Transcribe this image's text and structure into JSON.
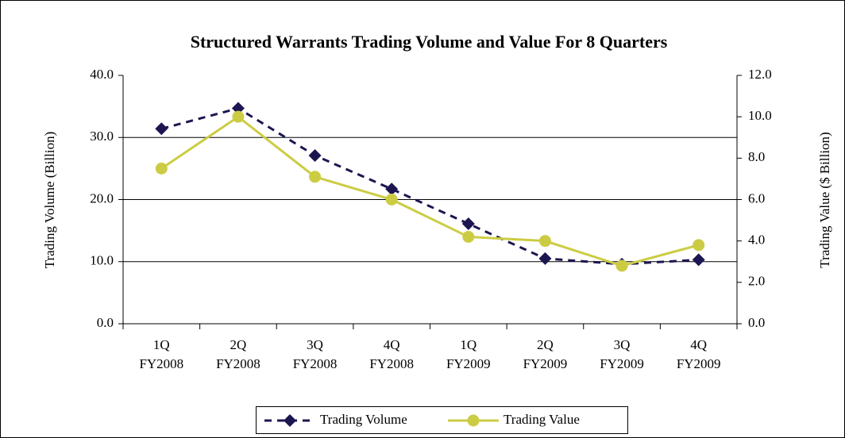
{
  "chart_data": {
    "type": "line",
    "title": "Structured Warrants Trading Volume and Value For 8 Quarters",
    "ylabel": "Trading Volume (Billion)",
    "y2label": "Trading Value ($ Billion)",
    "categories": [
      [
        "1Q",
        "FY2008"
      ],
      [
        "2Q",
        "FY2008"
      ],
      [
        "3Q",
        "FY2008"
      ],
      [
        "4Q",
        "FY2008"
      ],
      [
        "1Q",
        "FY2009"
      ],
      [
        "2Q",
        "FY2009"
      ],
      [
        "3Q",
        "FY2009"
      ],
      [
        "4Q",
        "FY2009"
      ]
    ],
    "series": [
      {
        "name": "Trading Volume",
        "color": "#1c1650",
        "marker": "diamond",
        "dashed": true,
        "values": [
          31.4,
          34.7,
          27.1,
          21.7,
          16.1,
          10.5,
          9.6,
          10.3
        ]
      },
      {
        "name": "Trading Value",
        "color": "#cccc44",
        "marker": "circle",
        "dashed": false,
        "axis": "y2",
        "values": [
          7.5,
          10.0,
          7.1,
          6.0,
          4.2,
          4.0,
          2.8,
          3.8
        ]
      }
    ],
    "ylim": [
      0,
      40
    ],
    "yticks": [
      {
        "value": 0,
        "label": "0.0"
      },
      {
        "value": 10,
        "label": "10.0"
      },
      {
        "value": 20,
        "label": "20.0"
      },
      {
        "value": 30,
        "label": "30.0"
      },
      {
        "value": 40,
        "label": "40.0"
      }
    ],
    "y2lim": [
      0,
      12
    ],
    "y2ticks": [
      {
        "value": 0,
        "label": "0.0"
      },
      {
        "value": 2,
        "label": "2.0"
      },
      {
        "value": 4,
        "label": "4.0"
      },
      {
        "value": 6,
        "label": "6.0"
      },
      {
        "value": 8,
        "label": "8.0"
      },
      {
        "value": 10,
        "label": "10.0"
      },
      {
        "value": 12,
        "label": "12.0"
      }
    ],
    "grid": true,
    "legend": "bottom"
  }
}
